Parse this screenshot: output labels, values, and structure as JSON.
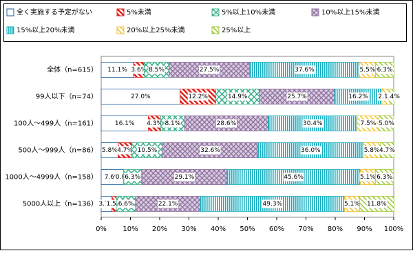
{
  "chart_data": {
    "type": "stacked-bar-horizontal",
    "categories": [
      "全体（n=615）",
      "99人以下（n=74）",
      "100人～499人（n=161）",
      "500人～999人（n=86）",
      "1000人～4999人（n=158）",
      "5000人以上（n=136）"
    ],
    "series": [
      {
        "name": "全く実施する予定がない",
        "color": "#ffffff",
        "values": [
          11.1,
          27.0,
          16.1,
          5.8,
          7.6,
          3.7
        ],
        "value_labels": [
          "11.1%",
          "27.0%",
          "16.1%",
          "5.8%",
          "7.6%",
          "3.7%"
        ]
      },
      {
        "name": "5%未満",
        "color": "#e0201a",
        "values": [
          3.6,
          12.2,
          4.3,
          4.7,
          0.0,
          1.5
        ],
        "value_labels": [
          "3.6%",
          "12.2%",
          "4.3%",
          "4.7%",
          "0.0%",
          "1.5%"
        ]
      },
      {
        "name": "5%以上10%未満",
        "color": "#3cb08c",
        "values": [
          8.5,
          14.9,
          8.1,
          10.5,
          6.3,
          6.6
        ],
        "value_labels": [
          "8.5%",
          "14.9%",
          "8.1%",
          "10.5%",
          "6.3%",
          "6.6%"
        ]
      },
      {
        "name": "10%以上15%未満",
        "color": "#8a6a9a",
        "values": [
          27.5,
          25.7,
          28.6,
          32.6,
          29.1,
          22.1
        ],
        "value_labels": [
          "27.5%",
          "25.7%",
          "28.6%",
          "32.6%",
          "29.1%",
          "22.1%"
        ]
      },
      {
        "name": "15%以上20%未満",
        "color": "#1aaec0",
        "values": [
          37.6,
          16.2,
          30.4,
          36.0,
          45.6,
          49.3
        ],
        "value_labels": [
          "37.6%",
          "16.2%",
          "30.4%",
          "36.0%",
          "45.6%",
          "49.3%"
        ]
      },
      {
        "name": "20%以上25%未満",
        "color": "#f0c020",
        "values": [
          5.5,
          2.7,
          7.5,
          5.8,
          5.1,
          5.1
        ],
        "value_labels": [
          "5.5%",
          "2.7%",
          "7.5%",
          "5.8%",
          "5.1%",
          "5.1%"
        ]
      },
      {
        "name": "25%以上",
        "color": "#9ac830",
        "values": [
          6.3,
          1.4,
          5.0,
          4.7,
          6.3,
          11.8
        ],
        "value_labels": [
          "6.3%",
          "1.4%",
          "5.0%",
          "4.7%",
          "6.3%",
          "11.8%"
        ]
      }
    ],
    "xlim": [
      0,
      100
    ],
    "xticks": [
      {
        "value": 0,
        "label": "0%"
      },
      {
        "value": 10,
        "label": "10%"
      },
      {
        "value": 20,
        "label": "20%"
      },
      {
        "value": 30,
        "label": "30%"
      },
      {
        "value": 40,
        "label": "40%"
      },
      {
        "value": 50,
        "label": "50%"
      },
      {
        "value": 60,
        "label": "60%"
      },
      {
        "value": 70,
        "label": "70%"
      },
      {
        "value": 80,
        "label": "80%"
      },
      {
        "value": 90,
        "label": "90%"
      },
      {
        "value": 100,
        "label": "100%"
      }
    ]
  }
}
